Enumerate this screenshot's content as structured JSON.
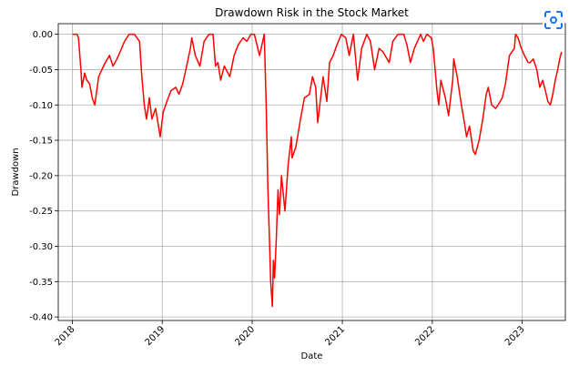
{
  "chart_data": {
    "type": "line",
    "title": "Drawdown Risk in the Stock Market",
    "xlabel": "Date",
    "ylabel": "Drawdown",
    "xlim": [
      "2017-11-05",
      "2023-06-25"
    ],
    "ylim": [
      -0.405,
      0.015
    ],
    "xticks": [
      "2018",
      "2019",
      "2020",
      "2021",
      "2022",
      "2023"
    ],
    "yticks": [
      "0.00",
      "-0.05",
      "-0.10",
      "-0.15",
      "-0.20",
      "-0.25",
      "-0.30",
      "-0.35",
      "-0.40"
    ],
    "grid": true,
    "line_color": "#ff0000",
    "series": [
      {
        "points": [
          [
            "2018-01-02",
            0.0
          ],
          [
            "2018-01-20",
            0.0
          ],
          [
            "2018-01-26",
            -0.005
          ],
          [
            "2018-02-05",
            -0.05
          ],
          [
            "2018-02-09",
            -0.075
          ],
          [
            "2018-02-20",
            -0.055
          ],
          [
            "2018-03-01",
            -0.065
          ],
          [
            "2018-03-12",
            -0.07
          ],
          [
            "2018-03-23",
            -0.09
          ],
          [
            "2018-04-02",
            -0.1
          ],
          [
            "2018-04-18",
            -0.06
          ],
          [
            "2018-05-01",
            -0.05
          ],
          [
            "2018-05-15",
            -0.04
          ],
          [
            "2018-06-01",
            -0.03
          ],
          [
            "2018-06-15",
            -0.045
          ],
          [
            "2018-07-01",
            -0.035
          ],
          [
            "2018-07-20",
            -0.02
          ],
          [
            "2018-08-01",
            -0.01
          ],
          [
            "2018-08-20",
            0.0
          ],
          [
            "2018-09-10",
            0.0
          ],
          [
            "2018-09-20",
            -0.005
          ],
          [
            "2018-10-01",
            -0.01
          ],
          [
            "2018-10-10",
            -0.06
          ],
          [
            "2018-10-20",
            -0.1
          ],
          [
            "2018-10-29",
            -0.12
          ],
          [
            "2018-11-10",
            -0.09
          ],
          [
            "2018-11-20",
            -0.12
          ],
          [
            "2018-12-05",
            -0.105
          ],
          [
            "2018-12-24",
            -0.145
          ],
          [
            "2019-01-05",
            -0.11
          ],
          [
            "2019-01-20",
            -0.095
          ],
          [
            "2019-02-05",
            -0.08
          ],
          [
            "2019-02-25",
            -0.075
          ],
          [
            "2019-03-10",
            -0.085
          ],
          [
            "2019-03-25",
            -0.07
          ],
          [
            "2019-04-10",
            -0.045
          ],
          [
            "2019-04-25",
            -0.02
          ],
          [
            "2019-05-01",
            -0.005
          ],
          [
            "2019-05-15",
            -0.03
          ],
          [
            "2019-06-03",
            -0.045
          ],
          [
            "2019-06-20",
            -0.01
          ],
          [
            "2019-07-10",
            0.0
          ],
          [
            "2019-07-26",
            0.0
          ],
          [
            "2019-08-05",
            -0.045
          ],
          [
            "2019-08-15",
            -0.04
          ],
          [
            "2019-08-26",
            -0.065
          ],
          [
            "2019-09-10",
            -0.045
          ],
          [
            "2019-10-02",
            -0.06
          ],
          [
            "2019-10-20",
            -0.03
          ],
          [
            "2019-11-05",
            -0.015
          ],
          [
            "2019-11-25",
            -0.005
          ],
          [
            "2019-12-10",
            -0.01
          ],
          [
            "2019-12-27",
            0.0
          ],
          [
            "2020-01-10",
            0.0
          ],
          [
            "2020-01-31",
            -0.03
          ],
          [
            "2020-02-19",
            0.0
          ],
          [
            "2020-02-27",
            -0.1
          ],
          [
            "2020-03-05",
            -0.22
          ],
          [
            "2020-03-12",
            -0.3
          ],
          [
            "2020-03-16",
            -0.35
          ],
          [
            "2020-03-23",
            -0.385
          ],
          [
            "2020-03-27",
            -0.32
          ],
          [
            "2020-04-01",
            -0.345
          ],
          [
            "2020-04-08",
            -0.29
          ],
          [
            "2020-04-15",
            -0.22
          ],
          [
            "2020-04-21",
            -0.255
          ],
          [
            "2020-04-29",
            -0.2
          ],
          [
            "2020-05-13",
            -0.25
          ],
          [
            "2020-05-26",
            -0.185
          ],
          [
            "2020-06-08",
            -0.145
          ],
          [
            "2020-06-11",
            -0.175
          ],
          [
            "2020-06-26",
            -0.16
          ],
          [
            "2020-07-15",
            -0.12
          ],
          [
            "2020-07-31",
            -0.09
          ],
          [
            "2020-08-20",
            -0.085
          ],
          [
            "2020-09-02",
            -0.06
          ],
          [
            "2020-09-15",
            -0.075
          ],
          [
            "2020-09-23",
            -0.125
          ],
          [
            "2020-10-05",
            -0.09
          ],
          [
            "2020-10-15",
            -0.06
          ],
          [
            "2020-10-30",
            -0.095
          ],
          [
            "2020-11-10",
            -0.04
          ],
          [
            "2020-11-25",
            -0.03
          ],
          [
            "2020-12-10",
            -0.015
          ],
          [
            "2020-12-28",
            0.0
          ],
          [
            "2021-01-15",
            -0.005
          ],
          [
            "2021-01-29",
            -0.03
          ],
          [
            "2021-02-15",
            0.0
          ],
          [
            "2021-03-04",
            -0.065
          ],
          [
            "2021-03-20",
            -0.02
          ],
          [
            "2021-04-10",
            0.0
          ],
          [
            "2021-04-25",
            -0.01
          ],
          [
            "2021-05-12",
            -0.05
          ],
          [
            "2021-05-30",
            -0.02
          ],
          [
            "2021-06-15",
            -0.025
          ],
          [
            "2021-07-10",
            -0.04
          ],
          [
            "2021-07-25",
            -0.01
          ],
          [
            "2021-08-15",
            0.0
          ],
          [
            "2021-09-07",
            0.0
          ],
          [
            "2021-09-20",
            -0.015
          ],
          [
            "2021-10-04",
            -0.04
          ],
          [
            "2021-10-20",
            -0.02
          ],
          [
            "2021-11-15",
            0.0
          ],
          [
            "2021-11-26",
            -0.01
          ],
          [
            "2021-12-10",
            0.0
          ],
          [
            "2021-12-28",
            -0.005
          ],
          [
            "2022-01-05",
            -0.02
          ],
          [
            "2022-01-20",
            -0.08
          ],
          [
            "2022-01-27",
            -0.1
          ],
          [
            "2022-02-05",
            -0.065
          ],
          [
            "2022-02-23",
            -0.09
          ],
          [
            "2022-03-08",
            -0.115
          ],
          [
            "2022-03-25",
            -0.065
          ],
          [
            "2022-03-29",
            -0.035
          ],
          [
            "2022-04-12",
            -0.06
          ],
          [
            "2022-04-29",
            -0.1
          ],
          [
            "2022-05-09",
            -0.12
          ],
          [
            "2022-05-20",
            -0.145
          ],
          [
            "2022-06-01",
            -0.13
          ],
          [
            "2022-06-16",
            -0.165
          ],
          [
            "2022-06-25",
            -0.17
          ],
          [
            "2022-07-10",
            -0.15
          ],
          [
            "2022-07-25",
            -0.12
          ],
          [
            "2022-08-08",
            -0.085
          ],
          [
            "2022-08-16",
            -0.075
          ],
          [
            "2022-08-30",
            -0.1
          ],
          [
            "2022-09-15",
            -0.105
          ],
          [
            "2022-09-25",
            -0.1
          ],
          [
            "2022-10-12",
            -0.09
          ],
          [
            "2022-10-25",
            -0.07
          ],
          [
            "2022-11-10",
            -0.03
          ],
          [
            "2022-11-30",
            -0.02
          ],
          [
            "2022-12-05",
            0.0
          ],
          [
            "2022-12-15",
            -0.005
          ],
          [
            "2022-12-28",
            -0.02
          ],
          [
            "2023-01-10",
            -0.03
          ],
          [
            "2023-01-25",
            -0.04
          ],
          [
            "2023-02-02",
            -0.04
          ],
          [
            "2023-02-15",
            -0.035
          ],
          [
            "2023-03-01",
            -0.05
          ],
          [
            "2023-03-13",
            -0.075
          ],
          [
            "2023-03-25",
            -0.065
          ],
          [
            "2023-04-05",
            -0.08
          ],
          [
            "2023-04-15",
            -0.095
          ],
          [
            "2023-04-25",
            -0.1
          ],
          [
            "2023-05-05",
            -0.085
          ],
          [
            "2023-05-15",
            -0.065
          ],
          [
            "2023-05-25",
            -0.05
          ],
          [
            "2023-06-02",
            -0.035
          ],
          [
            "2023-06-10",
            -0.025
          ]
        ]
      }
    ]
  },
  "icons": {
    "lens": "google-lens-icon",
    "lens_color": "#1a73e8"
  }
}
